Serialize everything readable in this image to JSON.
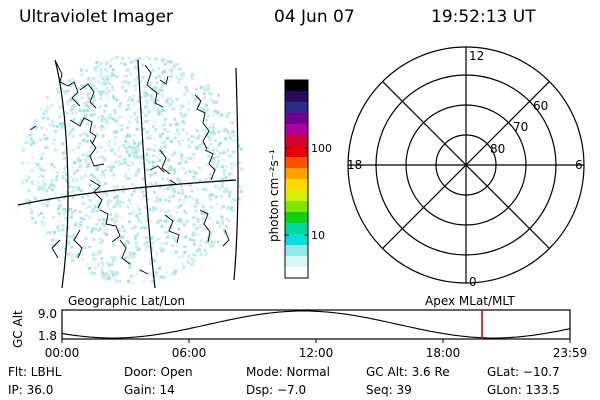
{
  "header": {
    "title": "Ultraviolet Imager",
    "date": "04 Jun 07",
    "time": "19:52:13 UT"
  },
  "colorbar": {
    "unit_label": "photon cm⁻²s⁻¹",
    "ticks": [
      "100",
      "10"
    ],
    "colors": [
      "#000000",
      "#2a0a5a",
      "#2b2b8a",
      "#700090",
      "#b000a0",
      "#d00030",
      "#e80000",
      "#ff5000",
      "#ffa000",
      "#ffd800",
      "#d8f000",
      "#80e800",
      "#10d010",
      "#00d8a0",
      "#00e0e0",
      "#90e8e8",
      "#d8f4f4",
      "#ffffff"
    ]
  },
  "polar_plot": {
    "mlt_labels": [
      "12",
      "18",
      "6",
      "0"
    ],
    "lat_labels": [
      "60",
      "70",
      "80"
    ]
  },
  "timeline": {
    "geo_label": "Geographic Lat/Lon",
    "apex_label": "Apex MLat/MLT",
    "y_axis_label": "GC Alt",
    "y_ticks": [
      "9.0",
      "1.8"
    ],
    "x_ticks": [
      "00:00",
      "06:00",
      "12:00",
      "18:00",
      "23:59"
    ],
    "marker_color": "#e00000"
  },
  "info": {
    "filter": "Flt: LBHL",
    "door": "Door: Open",
    "mode": "Mode: Normal",
    "gc_alt": "GC Alt: 3.6 Re",
    "glat": "GLat: −10.7",
    "ip": "IP: 36.0",
    "gain": "Gain: 14",
    "dsp": "Dsp:  −7.0",
    "seq": "Seq: 39",
    "glon": "GLon: 133.5"
  }
}
